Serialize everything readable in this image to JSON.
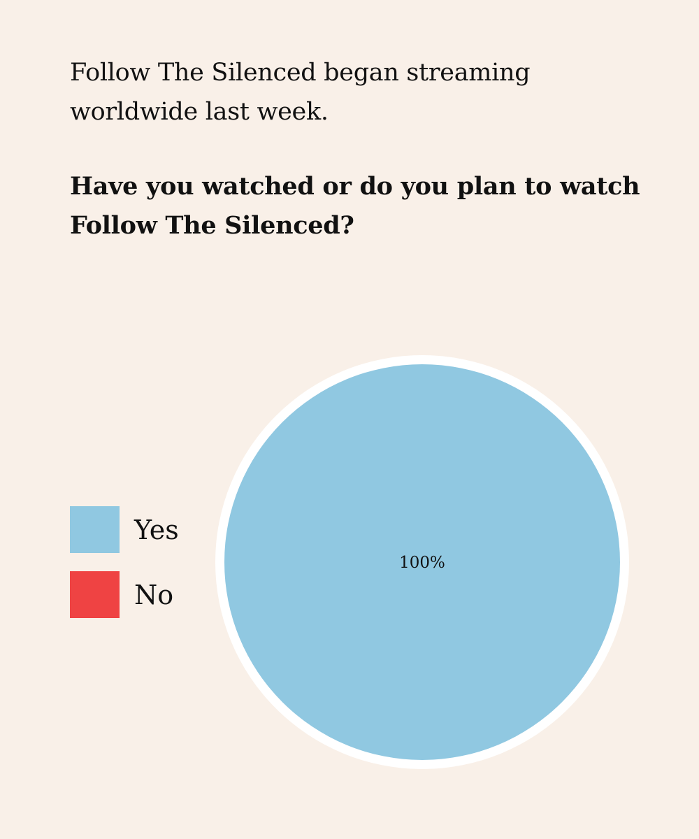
{
  "intro_text": "Follow The Silenced began streaming worldwide last week.",
  "question_text": "Have you watched or do you plan to watch Follow The Silenced?",
  "colors": {
    "background": "#f9f0e8",
    "yes": "#90c8e1",
    "no": "#ef4343",
    "pie_border": "#ffffff"
  },
  "chart_data": {
    "type": "pie",
    "title": "Have you watched or do you plan to watch Follow The Silenced?",
    "legend_position": "left",
    "slices": [
      {
        "label": "Yes",
        "value": 100,
        "percent_label": "100%",
        "color": "#90c8e1"
      },
      {
        "label": "No",
        "value": 0,
        "percent_label": "",
        "color": "#ef4343"
      }
    ]
  }
}
